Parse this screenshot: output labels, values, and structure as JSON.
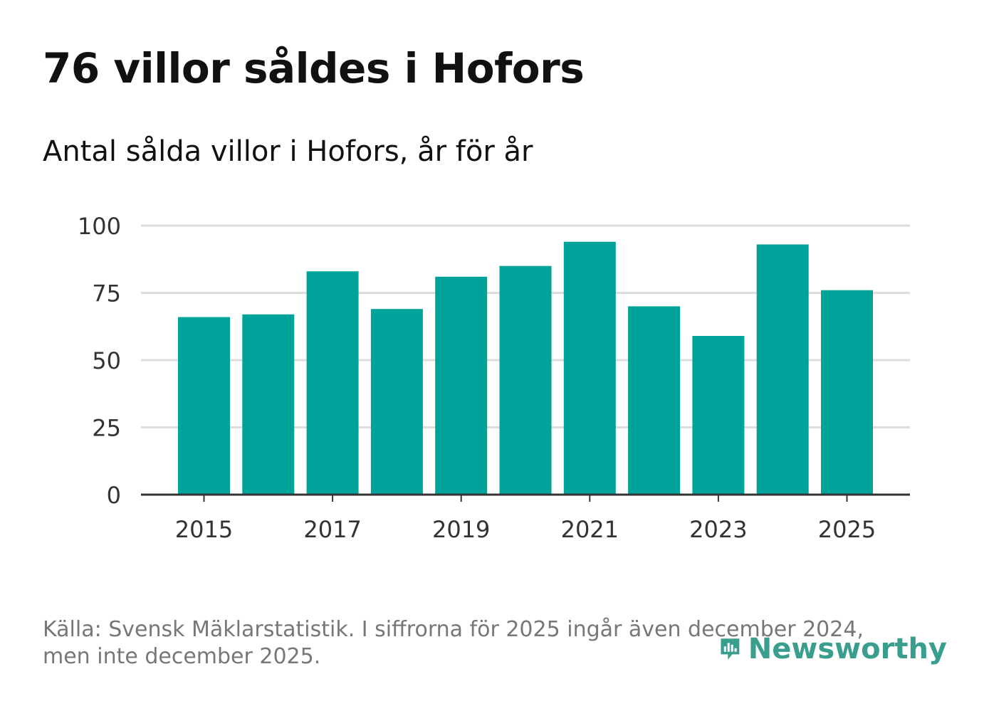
{
  "header": {
    "title": "76 villor såldes i Hofors",
    "subtitle": "Antal sålda villor i Hofors, år för år"
  },
  "footer": {
    "source": "Källa: Svensk Mäklarstatistik. I siffrorna för 2025 ingår även december 2024, men inte december 2025.",
    "logo_text": "Newsworthy"
  },
  "colors": {
    "bar": "#00a399",
    "grid": "#dddddd",
    "axis": "#333333",
    "tick_label": "#333333",
    "logo": "#3a9e8f"
  },
  "chart_data": {
    "type": "bar",
    "title": "Antal sålda villor i Hofors, år för år",
    "categories": [
      "2015",
      "2016",
      "2017",
      "2018",
      "2019",
      "2020",
      "2021",
      "2022",
      "2023",
      "2024",
      "2025"
    ],
    "values": [
      66,
      67,
      83,
      69,
      81,
      85,
      94,
      70,
      59,
      93,
      76
    ],
    "x_tick_labels": [
      "2015",
      "2017",
      "2019",
      "2021",
      "2023",
      "2025"
    ],
    "y_ticks": [
      0,
      25,
      50,
      75,
      100
    ],
    "ylim": [
      0,
      100
    ],
    "grid": true,
    "legend": "none"
  }
}
